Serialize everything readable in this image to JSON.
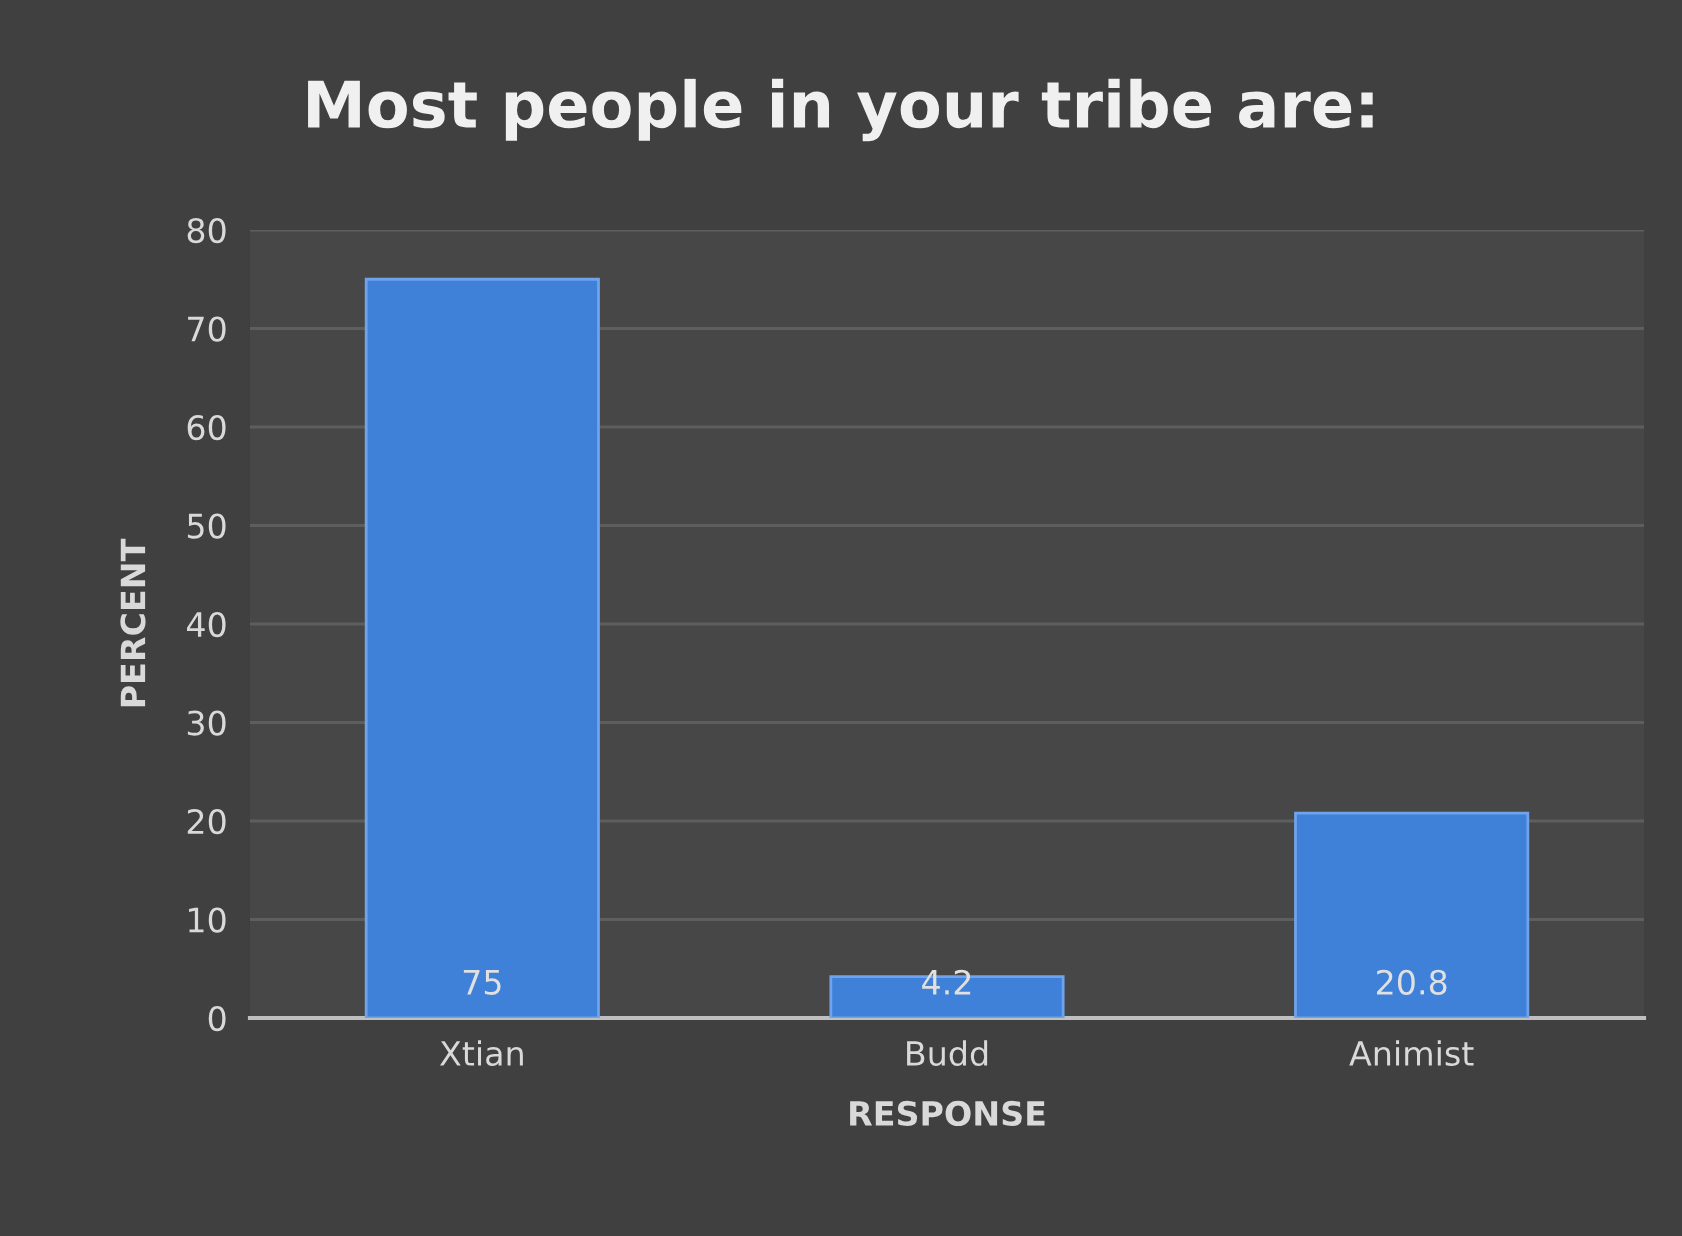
{
  "chart_data": {
    "type": "bar",
    "title": "Most people in your tribe are:",
    "xlabel": "RESPONSE",
    "ylabel": "PERCENT",
    "categories": [
      "Xtian",
      "Budd",
      "Animist"
    ],
    "values": [
      75,
      4.2,
      20.8
    ],
    "color": "#3f80d8",
    "ylim": [
      0,
      80
    ],
    "yticks": [
      0,
      10,
      20,
      30,
      40,
      50,
      60,
      70,
      80
    ],
    "grid": "y",
    "data_labels": true
  }
}
